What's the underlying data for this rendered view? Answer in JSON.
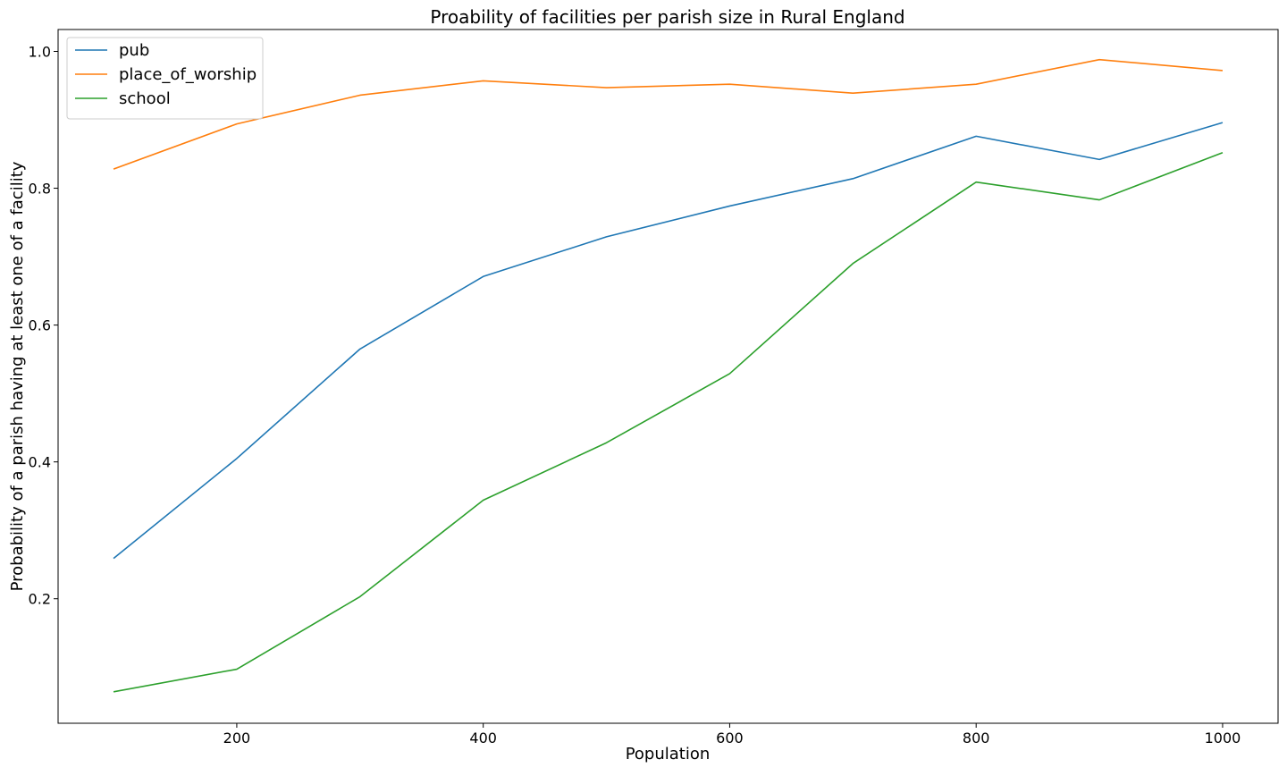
{
  "chart_data": {
    "type": "line",
    "title": "Proability of facilities per parish size in Rural England",
    "xlabel": "Population",
    "ylabel": "Probability of a parish having at least one of a facility",
    "x": [
      100,
      200,
      300,
      400,
      500,
      600,
      700,
      800,
      900,
      1000
    ],
    "xlim": [
      55,
      1045
    ],
    "ylim": [
      0.018,
      1.032
    ],
    "xticks": [
      200,
      400,
      600,
      800,
      1000
    ],
    "yticks": [
      0.2,
      0.4,
      0.6,
      0.8,
      1.0
    ],
    "xtick_labels": [
      "200",
      "400",
      "600",
      "800",
      "1000"
    ],
    "ytick_labels": [
      "0.2",
      "0.4",
      "0.6",
      "0.8",
      "1.0"
    ],
    "grid": false,
    "legend_position": "top-left",
    "series": [
      {
        "name": "pub",
        "color": "#1f77b4",
        "values": [
          0.259,
          0.405,
          0.565,
          0.671,
          0.729,
          0.774,
          0.814,
          0.876,
          0.842,
          0.896
        ]
      },
      {
        "name": "place_of_worship",
        "color": "#ff7f0e",
        "values": [
          0.828,
          0.894,
          0.936,
          0.957,
          0.947,
          0.952,
          0.939,
          0.952,
          0.988,
          0.972
        ]
      },
      {
        "name": "school",
        "color": "#2ca02c",
        "values": [
          0.064,
          0.097,
          0.203,
          0.344,
          0.428,
          0.529,
          0.69,
          0.809,
          0.783,
          0.852
        ]
      }
    ]
  }
}
